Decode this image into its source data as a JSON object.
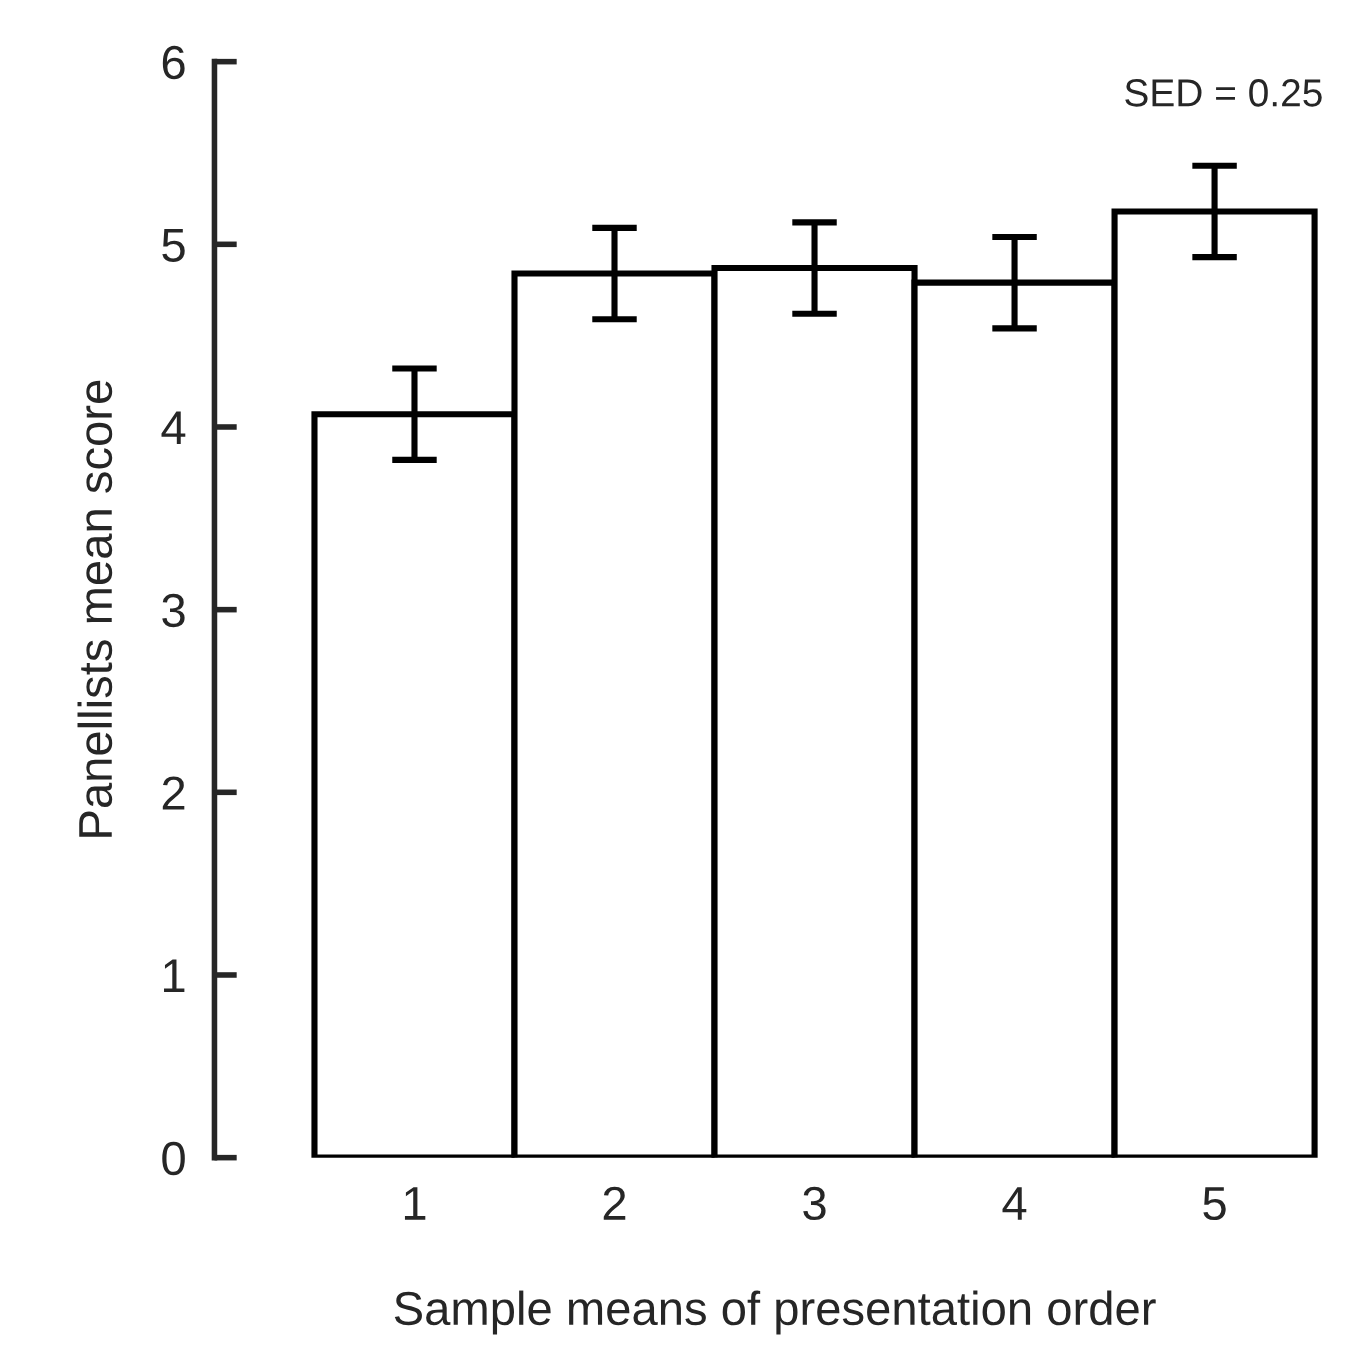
{
  "chart_data": {
    "type": "bar",
    "xlabel": "Sample means of presentation order",
    "ylabel": "Panellists mean score",
    "categories": [
      "1",
      "2",
      "3",
      "4",
      "5"
    ],
    "values": [
      4.07,
      4.84,
      4.87,
      4.79,
      5.18
    ],
    "errors": [
      0.25,
      0.25,
      0.25,
      0.25,
      0.25
    ],
    "color": "#ffffff",
    "ylim": [
      0,
      6
    ],
    "yticks": [
      0,
      1,
      2,
      3,
      4,
      5,
      6
    ],
    "grid": false,
    "annotations": [
      "SED = 0.25"
    ]
  }
}
